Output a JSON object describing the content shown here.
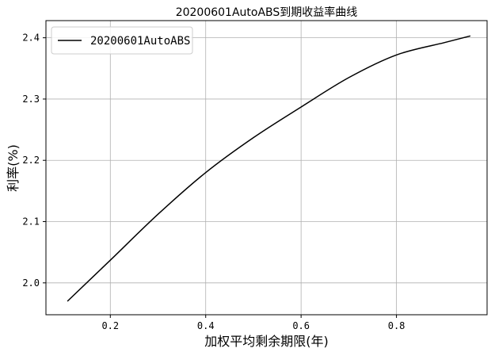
{
  "chart_data": {
    "type": "line",
    "title": "20200601AutoABS到期收益率曲线",
    "xlabel": "加权平均剩余期限(年)",
    "ylabel": "利率(%)",
    "xlim": [
      0.065,
      0.99
    ],
    "ylim": [
      1.948,
      2.428
    ],
    "xticks": [
      0.2,
      0.4,
      0.6,
      0.8
    ],
    "yticks": [
      2.0,
      2.1,
      2.2,
      2.3,
      2.4
    ],
    "xtick_labels": [
      "0.2",
      "0.4",
      "0.6",
      "0.8"
    ],
    "ytick_labels": [
      "2.0",
      "2.1",
      "2.2",
      "2.3",
      "2.4"
    ],
    "grid": true,
    "legend_position": "top-left",
    "colors": {
      "line": "#000000",
      "grid": "#b0b0b0",
      "frame": "#000000"
    },
    "series": [
      {
        "name": "20200601AutoABS",
        "x": [
          0.11,
          0.2,
          0.3,
          0.4,
          0.5,
          0.6,
          0.7,
          0.8,
          0.9,
          0.955
        ],
        "y": [
          1.97,
          2.037,
          2.112,
          2.18,
          2.237,
          2.287,
          2.335,
          2.372,
          2.392,
          2.403
        ]
      }
    ]
  }
}
